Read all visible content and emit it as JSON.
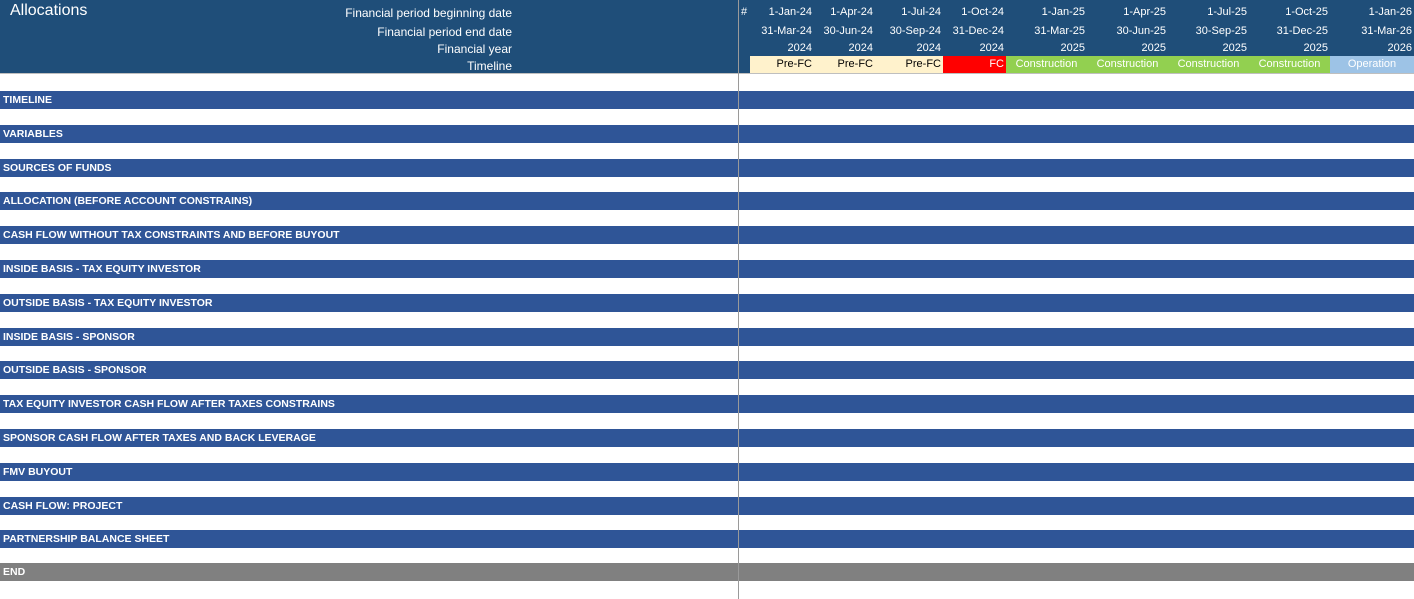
{
  "sheet": {
    "title": "Allocations",
    "header_labels": {
      "begin": "Financial period beginning date",
      "end": "Financial period end date",
      "year": "Financial year",
      "timeline": "Timeline"
    },
    "hash_symbol": "#"
  },
  "periods": [
    {
      "begin": "1-Jan-24",
      "end": "31-Mar-24",
      "year": "2024",
      "timeline": "Pre-FC"
    },
    {
      "begin": "1-Apr-24",
      "end": "30-Jun-24",
      "year": "2024",
      "timeline": "Pre-FC"
    },
    {
      "begin": "1-Jul-24",
      "end": "30-Sep-24",
      "year": "2024",
      "timeline": "Pre-FC"
    },
    {
      "begin": "1-Oct-24",
      "end": "31-Dec-24",
      "year": "2024",
      "timeline": "FC"
    },
    {
      "begin": "1-Jan-25",
      "end": "31-Mar-25",
      "year": "2025",
      "timeline": "Construction"
    },
    {
      "begin": "1-Apr-25",
      "end": "30-Jun-25",
      "year": "2025",
      "timeline": "Construction"
    },
    {
      "begin": "1-Jul-25",
      "end": "30-Sep-25",
      "year": "2025",
      "timeline": "Construction"
    },
    {
      "begin": "1-Oct-25",
      "end": "31-Dec-25",
      "year": "2025",
      "timeline": "Construction"
    },
    {
      "begin": "1-Jan-26",
      "end": "31-Mar-26",
      "year": "2026",
      "timeline": "Operation"
    }
  ],
  "sections": [
    "TIMELINE",
    "VARIABLES",
    "SOURCES OF FUNDS",
    "ALLOCATION (BEFORE ACCOUNT CONSTRAINS)",
    "CASH FLOW WITHOUT TAX CONSTRAINTS AND BEFORE BUYOUT",
    "INSIDE BASIS - TAX EQUITY INVESTOR",
    "OUTSIDE BASIS - TAX EQUITY INVESTOR",
    "INSIDE BASIS - SPONSOR",
    "OUTSIDE BASIS - SPONSOR",
    "TAX EQUITY INVESTOR CASH FLOW AFTER TAXES CONSTRAINS",
    "SPONSOR CASH FLOW AFTER TAXES AND BACK LEVERAGE",
    "FMV BUYOUT",
    "CASH FLOW: PROJECT",
    "PARTNERSHIP BALANCE SHEET"
  ],
  "end_label": "END",
  "colors": {
    "header_bg": "#1f4e79",
    "section_bg": "#2f5597",
    "end_bg": "#808080",
    "pre_fc": "#fff2cc",
    "fc": "#ff0000",
    "construction": "#92d050",
    "operation": "#9dc3e6"
  }
}
